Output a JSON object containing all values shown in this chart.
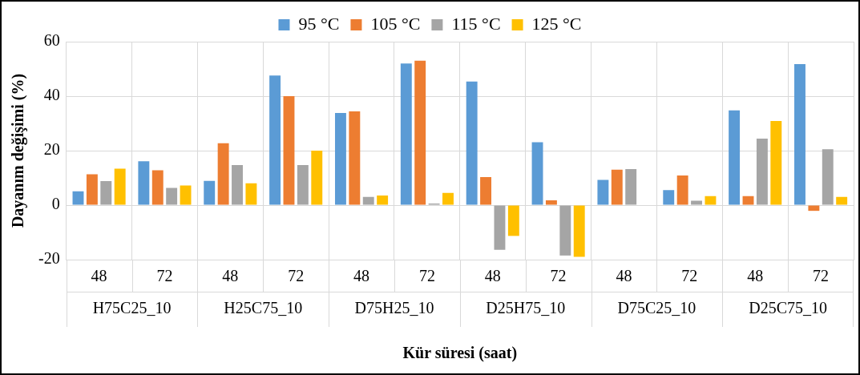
{
  "chart_data": {
    "type": "bar",
    "xlabel": "Kür süresi (saat)",
    "ylabel": "Dayanım değişimi (%)",
    "categories": [
      "48",
      "72",
      "48",
      "72",
      "48",
      "72",
      "48",
      "72",
      "48",
      "72",
      "48",
      "72"
    ],
    "annotations": [
      "H75C25_10",
      "H25C75_10",
      "D75H25_10",
      "D25H75_10",
      "D75C25_10",
      "D25C75_10"
    ],
    "series": [
      {
        "name": "95 °C",
        "color": "#5b9bd5",
        "values": [
          5.1,
          16.1,
          8.9,
          47.6,
          33.8,
          52,
          45.4,
          23.1,
          9.3,
          5.5,
          34.8,
          51.8
        ]
      },
      {
        "name": "105 °C",
        "color": "#ed7d31",
        "values": [
          11.3,
          12.8,
          22.7,
          40,
          34.4,
          53,
          10.3,
          1.8,
          13,
          10.9,
          3.3,
          -2.1
        ]
      },
      {
        "name": "115 °C",
        "color": "#a5a5a5",
        "values": [
          8.8,
          6.3,
          14.7,
          14.7,
          3,
          0.6,
          -16.4,
          -18.5,
          13.2,
          1.6,
          24.4,
          20.5
        ]
      },
      {
        "name": "125 °C",
        "color": "#ffc000",
        "values": [
          13.4,
          7.2,
          8,
          20,
          3.5,
          4.5,
          -11.3,
          -19,
          null,
          3.3,
          30.9,
          3
        ]
      }
    ],
    "ylim": [
      -20,
      60
    ],
    "yticks": [
      -20,
      0,
      20,
      40,
      60
    ],
    "grid": true,
    "legend": "top"
  }
}
